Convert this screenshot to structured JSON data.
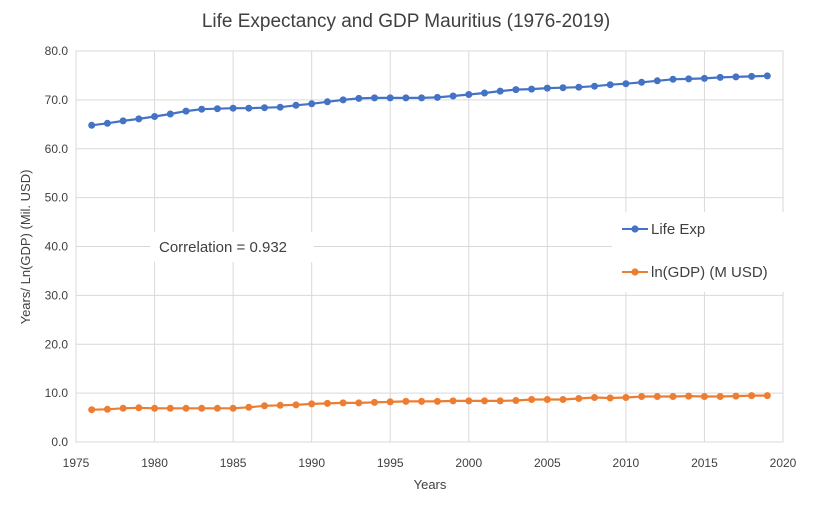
{
  "chart_data": {
    "type": "line",
    "title": "Life Expectancy and GDP Mauritius (1976-2019)",
    "xlabel": "Years",
    "ylabel": "Years/ Ln(GDP) (Mil. USD)",
    "xlim": [
      1975,
      2020
    ],
    "ylim": [
      0,
      80
    ],
    "x_ticks": [
      1975,
      1980,
      1985,
      1990,
      1995,
      2000,
      2005,
      2010,
      2015,
      2020
    ],
    "y_ticks": [
      "0.0",
      "10.0",
      "20.0",
      "30.0",
      "40.0",
      "50.0",
      "60.0",
      "70.0",
      "80.0"
    ],
    "grid": "vertical and horizontal",
    "legend_position": "right",
    "annotation": "Correlation = 0.932",
    "x": [
      1976,
      1977,
      1978,
      1979,
      1980,
      1981,
      1982,
      1983,
      1984,
      1985,
      1986,
      1987,
      1988,
      1989,
      1990,
      1991,
      1992,
      1993,
      1994,
      1995,
      1996,
      1997,
      1998,
      1999,
      2000,
      2001,
      2002,
      2003,
      2004,
      2005,
      2006,
      2007,
      2008,
      2009,
      2010,
      2011,
      2012,
      2013,
      2014,
      2015,
      2016,
      2017,
      2018,
      2019
    ],
    "series": [
      {
        "name": "Life Exp",
        "color": "#4472c4",
        "values": [
          64.8,
          65.2,
          65.7,
          66.1,
          66.6,
          67.1,
          67.7,
          68.1,
          68.2,
          68.3,
          68.3,
          68.4,
          68.5,
          68.9,
          69.2,
          69.6,
          70.0,
          70.3,
          70.4,
          70.4,
          70.4,
          70.4,
          70.5,
          70.8,
          71.1,
          71.4,
          71.8,
          72.1,
          72.2,
          72.4,
          72.5,
          72.6,
          72.8,
          73.1,
          73.3,
          73.6,
          73.9,
          74.2,
          74.3,
          74.4,
          74.6,
          74.7,
          74.8,
          74.9
        ]
      },
      {
        "name": "ln(GDP) (M USD)",
        "color": "#ed7d31",
        "values": [
          6.6,
          6.7,
          6.9,
          7.0,
          6.9,
          6.9,
          6.9,
          6.9,
          6.9,
          6.9,
          7.1,
          7.4,
          7.5,
          7.6,
          7.8,
          7.9,
          8.0,
          8.0,
          8.1,
          8.2,
          8.3,
          8.3,
          8.3,
          8.4,
          8.4,
          8.4,
          8.4,
          8.5,
          8.7,
          8.7,
          8.7,
          8.9,
          9.1,
          9.0,
          9.1,
          9.3,
          9.3,
          9.3,
          9.4,
          9.3,
          9.3,
          9.4,
          9.5,
          9.5
        ]
      }
    ]
  }
}
